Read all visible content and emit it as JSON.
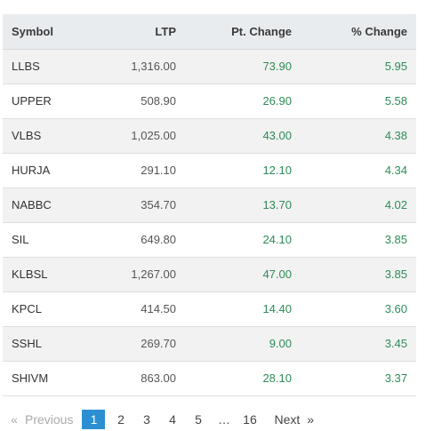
{
  "table": {
    "headers": [
      "Symbol",
      "LTP",
      "Pt. Change",
      "% Change"
    ],
    "rows": [
      {
        "symbol": "LLBS",
        "ltp": "1,316.00",
        "pt_change": "73.90",
        "pct_change": "5.95"
      },
      {
        "symbol": "UPPER",
        "ltp": "508.90",
        "pt_change": "26.90",
        "pct_change": "5.58"
      },
      {
        "symbol": "VLBS",
        "ltp": "1,025.00",
        "pt_change": "43.00",
        "pct_change": "4.38"
      },
      {
        "symbol": "HURJA",
        "ltp": "291.10",
        "pt_change": "12.10",
        "pct_change": "4.34"
      },
      {
        "symbol": "NABBC",
        "ltp": "354.70",
        "pt_change": "13.70",
        "pct_change": "4.02"
      },
      {
        "symbol": "SIL",
        "ltp": "649.80",
        "pt_change": "24.10",
        "pct_change": "3.85"
      },
      {
        "symbol": "KLBSL",
        "ltp": "1,267.00",
        "pt_change": "47.00",
        "pct_change": "3.85"
      },
      {
        "symbol": "KPCL",
        "ltp": "414.50",
        "pt_change": "14.40",
        "pct_change": "3.60"
      },
      {
        "symbol": "SSHL",
        "ltp": "269.70",
        "pt_change": "9.00",
        "pct_change": "3.45"
      },
      {
        "symbol": "SHIVM",
        "ltp": "863.00",
        "pt_change": "28.10",
        "pct_change": "3.37"
      }
    ]
  },
  "colors": {
    "positive": "#2e8b57",
    "header_bg": "#e9ecef",
    "active_page": "#2b8fd1",
    "row_stripe": "#f2f2f2"
  },
  "pagination": {
    "prev_arrow": "«",
    "prev_label": "Previous",
    "pages": [
      "1",
      "2",
      "3",
      "4",
      "5"
    ],
    "ellipsis": "…",
    "last_page": "16",
    "next_label": "Next",
    "next_arrow": "»",
    "active_page": "1"
  }
}
